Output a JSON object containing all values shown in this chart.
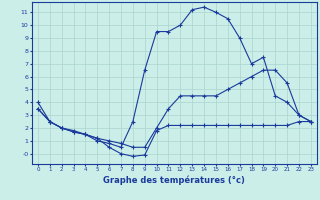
{
  "xlabel": "Graphe des températures (°c)",
  "background_color": "#cceee8",
  "grid_color": "#aad4ce",
  "line_color": "#1a3a9c",
  "xlim": [
    -0.5,
    23.5
  ],
  "ylim": [
    -0.8,
    11.8
  ],
  "xticks": [
    0,
    1,
    2,
    3,
    4,
    5,
    6,
    7,
    8,
    9,
    10,
    11,
    12,
    13,
    14,
    15,
    16,
    17,
    18,
    19,
    20,
    21,
    22,
    23
  ],
  "yticks": [
    0,
    1,
    2,
    3,
    4,
    5,
    6,
    7,
    8,
    9,
    10,
    11
  ],
  "ytick_labels": [
    "-0",
    "1",
    "2",
    "3",
    "4",
    "5",
    "6",
    "7",
    "8",
    "9",
    "10",
    "11"
  ],
  "curve_top_x": [
    0,
    1,
    2,
    3,
    4,
    5,
    6,
    7,
    8,
    9,
    10,
    11,
    12,
    13,
    14,
    15,
    16,
    17,
    18,
    19,
    20,
    21,
    22,
    23
  ],
  "curve_top_y": [
    4.0,
    2.5,
    2.0,
    1.7,
    1.5,
    1.0,
    0.8,
    0.5,
    2.5,
    6.5,
    9.5,
    9.5,
    10.0,
    11.2,
    11.4,
    11.0,
    10.5,
    9.0,
    7.0,
    7.5,
    4.5,
    4.0,
    3.0,
    2.5
  ],
  "curve_mid_x": [
    0,
    1,
    2,
    3,
    4,
    5,
    6,
    7,
    8,
    9,
    10,
    11,
    12,
    13,
    14,
    15,
    16,
    17,
    18,
    19,
    20,
    21,
    22,
    23
  ],
  "curve_mid_y": [
    3.5,
    2.5,
    2.0,
    1.7,
    1.5,
    1.2,
    1.0,
    0.8,
    0.5,
    0.5,
    2.0,
    3.5,
    4.5,
    4.5,
    4.5,
    4.5,
    5.0,
    5.5,
    6.0,
    6.5,
    6.5,
    5.5,
    3.0,
    2.5
  ],
  "curve_bot_x": [
    0,
    1,
    2,
    3,
    4,
    5,
    6,
    7,
    8,
    9,
    10,
    11,
    12,
    13,
    14,
    15,
    16,
    17,
    18,
    19,
    20,
    21,
    22,
    23
  ],
  "curve_bot_y": [
    3.5,
    2.5,
    2.0,
    1.8,
    1.5,
    1.2,
    0.5,
    0.0,
    -0.2,
    -0.1,
    1.8,
    2.2,
    2.2,
    2.2,
    2.2,
    2.2,
    2.2,
    2.2,
    2.2,
    2.2,
    2.2,
    2.2,
    2.5,
    2.5
  ]
}
